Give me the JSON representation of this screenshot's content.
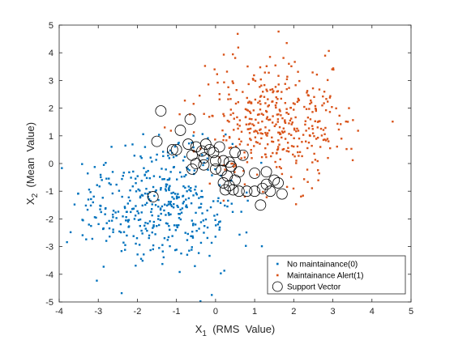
{
  "chart_data": {
    "type": "scatter",
    "title": "",
    "xlabel": {
      "main": "X",
      "sub": "1",
      "rest": "  (RMS  Value)"
    },
    "ylabel": {
      "main": "X",
      "sub": "2",
      "rest": "  (Mean  Value)"
    },
    "xlim": [
      -4,
      5
    ],
    "ylim": [
      -5,
      5
    ],
    "xticks": [
      "-4",
      "-3",
      "-2",
      "-1",
      "0",
      "1",
      "2",
      "3",
      "4",
      "5"
    ],
    "yticks": [
      "-5",
      "-4",
      "-3",
      "-2",
      "-1",
      "0",
      "1",
      "2",
      "3",
      "4",
      "5"
    ],
    "grid": false,
    "legend_position": "bottom-right",
    "series": [
      {
        "name": "No maintainance(0)",
        "color": "#0072BD",
        "marker": "dot",
        "center": [
          -1.5,
          -1.5
        ],
        "spread": [
          1.0,
          1.1
        ],
        "count": 420,
        "seed": 17
      },
      {
        "name": "Maintainance Alert(1)",
        "color": "#D95319",
        "marker": "dot",
        "center": [
          1.5,
          1.5
        ],
        "spread": [
          1.0,
          1.1
        ],
        "count": 420,
        "seed": 91
      }
    ],
    "support_vectors": {
      "name": "Support Vector",
      "marker": "open-circle",
      "color": "#000000",
      "points": [
        [
          -1.4,
          1.9
        ],
        [
          -0.65,
          1.6
        ],
        [
          -0.9,
          1.2
        ],
        [
          -1.5,
          0.8
        ],
        [
          -1.1,
          0.5
        ],
        [
          -1.0,
          0.5
        ],
        [
          -0.7,
          0.7
        ],
        [
          -0.5,
          0.6
        ],
        [
          -0.35,
          0.45
        ],
        [
          -0.25,
          0.7
        ],
        [
          -0.15,
          0.5
        ],
        [
          -0.05,
          0.4
        ],
        [
          0.1,
          0.6
        ],
        [
          -0.3,
          0.2
        ],
        [
          -0.6,
          0.3
        ],
        [
          -0.5,
          0.0
        ],
        [
          -0.6,
          -0.2
        ],
        [
          -0.3,
          -0.05
        ],
        [
          0.0,
          0.1
        ],
        [
          0.2,
          0.1
        ],
        [
          0.35,
          0.05
        ],
        [
          0.0,
          -0.2
        ],
        [
          0.15,
          -0.25
        ],
        [
          0.4,
          -0.1
        ],
        [
          0.6,
          -0.3
        ],
        [
          0.3,
          -0.45
        ],
        [
          0.5,
          -0.6
        ],
        [
          0.2,
          -0.7
        ],
        [
          0.35,
          -0.8
        ],
        [
          0.25,
          -0.95
        ],
        [
          0.45,
          -0.95
        ],
        [
          0.6,
          -1.0
        ],
        [
          0.8,
          -1.0
        ],
        [
          1.0,
          -1.0
        ],
        [
          1.2,
          -0.9
        ],
        [
          1.3,
          -0.75
        ],
        [
          1.5,
          -0.6
        ],
        [
          1.6,
          -0.7
        ],
        [
          1.7,
          -1.1
        ],
        [
          1.4,
          -1.0
        ],
        [
          1.15,
          -1.5
        ],
        [
          1.0,
          -0.35
        ],
        [
          1.3,
          -0.3
        ],
        [
          -1.6,
          -1.2
        ],
        [
          0.7,
          0.3
        ],
        [
          0.5,
          0.4
        ]
      ]
    }
  }
}
